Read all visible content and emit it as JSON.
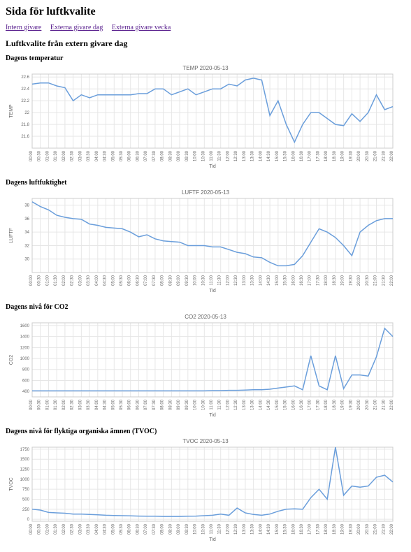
{
  "page_title": "Sida för luftkvalite",
  "nav": [
    {
      "label": "Intern givare"
    },
    {
      "label": "Externa givare dag"
    },
    {
      "label": "Externa givare vecka"
    }
  ],
  "subtitle": "Luftkvalite från extern givare dag",
  "x_ticks": [
    "00:00",
    "00:30",
    "01:00",
    "01:30",
    "02:00",
    "02:30",
    "03:00",
    "03:30",
    "04:00",
    "04:30",
    "05:00",
    "05:30",
    "06:00",
    "06:30",
    "07:00",
    "07:30",
    "08:00",
    "08:30",
    "09:00",
    "09:30",
    "10:00",
    "10:30",
    "11:00",
    "11:30",
    "12:00",
    "12:30",
    "13:00",
    "13:30",
    "14:00",
    "14:30",
    "15:00",
    "15:30",
    "16:00",
    "16:30",
    "17:00",
    "17:30",
    "18:00",
    "18:30",
    "19:00",
    "19:30",
    "20:00",
    "20:30",
    "21:00",
    "21:30",
    "22:00"
  ],
  "xaxis_label": "Tid",
  "line_color": "#6a9edb",
  "grid_color": "#e6e6e6",
  "border_color": "#cccccc",
  "label_color": "#666666",
  "charts": [
    {
      "section_heading": "Dagens temperatur",
      "title": "TEMP 2020-05-13",
      "yaxis_label": "TEMP",
      "ymin": 21.4,
      "ymax": 22.65,
      "yticks": [
        21.6,
        21.8,
        22.0,
        22.2,
        22.4,
        22.6
      ],
      "values": [
        22.48,
        22.5,
        22.5,
        22.45,
        22.42,
        22.2,
        22.3,
        22.25,
        22.3,
        22.3,
        22.3,
        22.3,
        22.3,
        22.32,
        22.32,
        22.4,
        22.4,
        22.3,
        22.35,
        22.4,
        22.3,
        22.35,
        22.4,
        22.4,
        22.48,
        22.45,
        22.55,
        22.58,
        22.55,
        21.95,
        22.2,
        21.8,
        21.5,
        21.8,
        22.0,
        22.0,
        21.9,
        21.8,
        21.78,
        21.98,
        21.85,
        22.0,
        22.3,
        22.05,
        22.1
      ]
    },
    {
      "section_heading": "Dagens luftfuktighet",
      "title": "LUFTF 2020-05-13",
      "yaxis_label": "LUFTF",
      "ymin": 28,
      "ymax": 39,
      "yticks": [
        30,
        32,
        34,
        36,
        38
      ],
      "values": [
        38.5,
        37.8,
        37.3,
        36.5,
        36.2,
        36.0,
        35.9,
        35.2,
        35.0,
        34.7,
        34.6,
        34.5,
        34.0,
        33.3,
        33.6,
        33.0,
        32.7,
        32.6,
        32.5,
        32.0,
        32.0,
        32.0,
        31.8,
        31.8,
        31.4,
        31.0,
        30.8,
        30.3,
        30.2,
        29.5,
        29.0,
        29.0,
        29.2,
        30.5,
        32.5,
        34.5,
        34.0,
        33.2,
        32.0,
        30.5,
        34.0,
        35.0,
        35.7,
        36.0,
        36.0
      ]
    },
    {
      "section_heading": "Dagens nivå för CO2",
      "title": "CO2 2020-05-13",
      "yaxis_label": "CO2",
      "ymin": 300,
      "ymax": 1650,
      "yticks": [
        400,
        600,
        800,
        1000,
        1200,
        1400,
        1600
      ],
      "values": [
        410,
        410,
        410,
        410,
        410,
        410,
        410,
        410,
        410,
        410,
        410,
        410,
        410,
        410,
        410,
        410,
        410,
        410,
        410,
        410,
        410,
        410,
        415,
        415,
        420,
        420,
        425,
        430,
        430,
        440,
        460,
        480,
        500,
        430,
        1050,
        500,
        430,
        1050,
        450,
        700,
        700,
        680,
        1030,
        1550,
        1400
      ]
    },
    {
      "section_heading": "Dagens nivå för flyktiga organiska ämnen (TVOC)",
      "title": "TVOC 2020-05-13",
      "yaxis_label": "TVOC",
      "ymin": -50,
      "ymax": 1800,
      "yticks": [
        0,
        250,
        500,
        750,
        1000,
        1250,
        1500,
        1750
      ],
      "values": [
        250,
        230,
        170,
        160,
        150,
        130,
        130,
        120,
        110,
        100,
        95,
        90,
        85,
        80,
        75,
        75,
        70,
        70,
        70,
        75,
        80,
        90,
        100,
        130,
        100,
        280,
        160,
        120,
        100,
        130,
        200,
        250,
        260,
        250,
        540,
        750,
        500,
        1800,
        600,
        830,
        800,
        830,
        1050,
        1100,
        930
      ]
    }
  ]
}
